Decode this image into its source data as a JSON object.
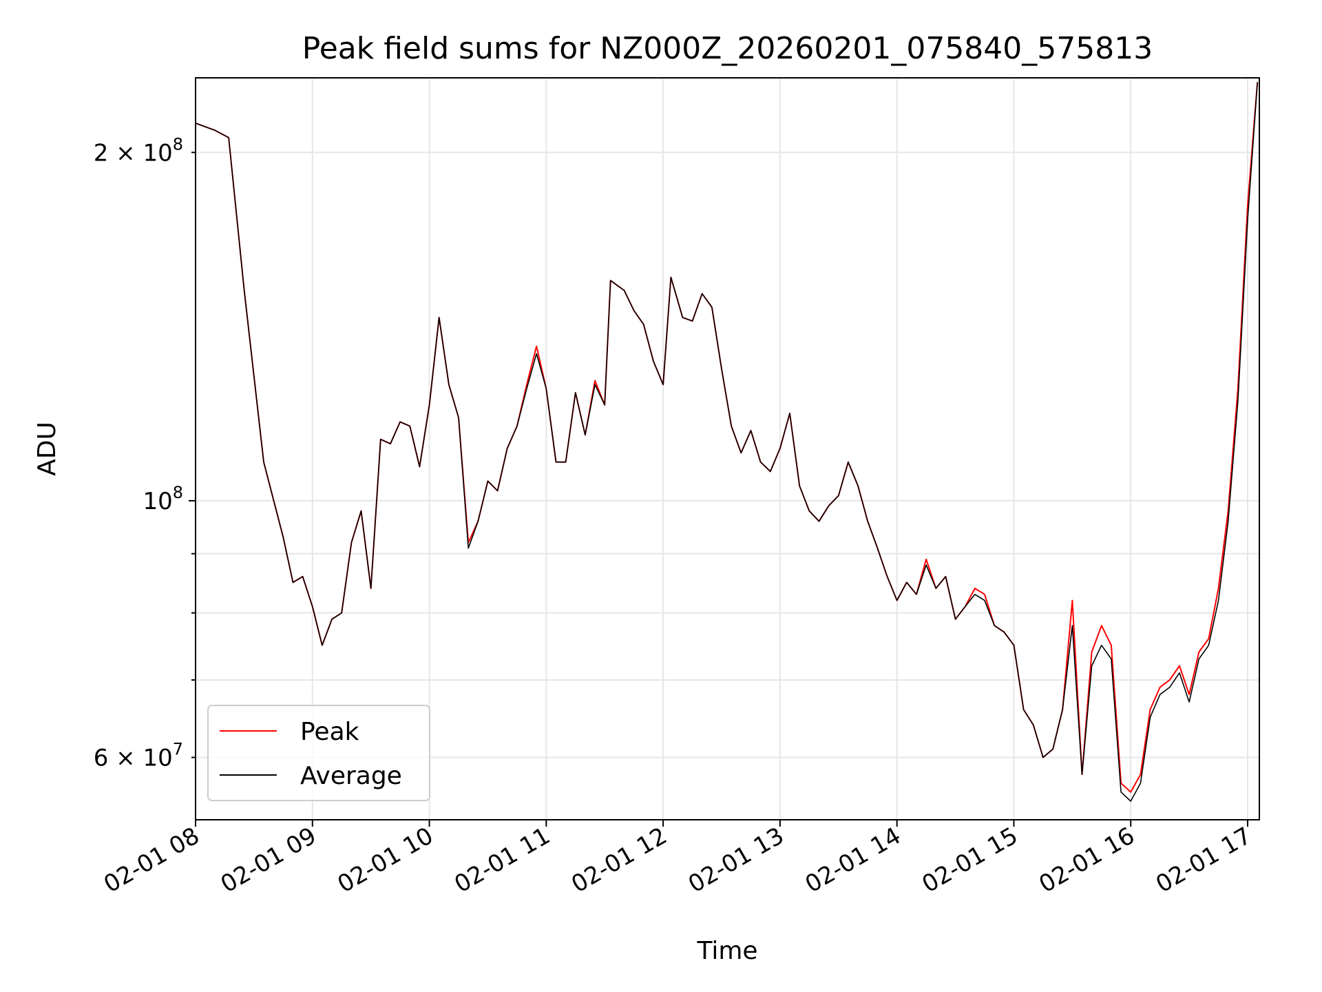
{
  "chart_data": {
    "type": "line",
    "title": "Peak field sums for NZ000Z_20260201_075840_575813",
    "xlabel": "Time",
    "ylabel": "ADU",
    "y_scale": "log",
    "ylim": [
      53000000,
      232000000
    ],
    "xlim": [
      "2026-02-01 08:00",
      "2026-02-01 17:00"
    ],
    "x_ticks": [
      "02-01 08",
      "02-01 09",
      "02-01 10",
      "02-01 11",
      "02-01 12",
      "02-01 13",
      "02-01 14",
      "02-01 15",
      "02-01 16",
      "02-01 17"
    ],
    "y_tick_labels": [
      {
        "value": 200000000,
        "mantissa": "2",
        "exp": "8"
      },
      {
        "value": 100000000,
        "mantissa": "",
        "exp": "8"
      },
      {
        "value": 60000000,
        "mantissa": "6",
        "exp": "7"
      }
    ],
    "grid": true,
    "legend_position": "lower-left",
    "x": [
      "08:00",
      "08:10",
      "08:17",
      "08:25",
      "08:35",
      "08:45",
      "08:50",
      "08:55",
      "09:00",
      "09:05",
      "09:10",
      "09:15",
      "09:20",
      "09:25",
      "09:30",
      "09:35",
      "09:40",
      "09:45",
      "09:50",
      "09:55",
      "10:00",
      "10:05",
      "10:10",
      "10:15",
      "10:20",
      "10:25",
      "10:30",
      "10:35",
      "10:40",
      "10:45",
      "10:50",
      "10:55",
      "11:00",
      "11:05",
      "11:10",
      "11:15",
      "11:20",
      "11:25",
      "11:30",
      "11:33",
      "11:40",
      "11:45",
      "11:50",
      "11:55",
      "12:00",
      "12:04",
      "12:10",
      "12:15",
      "12:20",
      "12:25",
      "12:30",
      "12:35",
      "12:40",
      "12:45",
      "12:50",
      "12:55",
      "13:00",
      "13:05",
      "13:10",
      "13:15",
      "13:20",
      "13:25",
      "13:30",
      "13:35",
      "13:40",
      "13:45",
      "13:50",
      "13:55",
      "14:00",
      "14:05",
      "14:10",
      "14:15",
      "14:20",
      "14:25",
      "14:30",
      "14:35",
      "14:40",
      "14:45",
      "14:50",
      "14:55",
      "15:00",
      "15:05",
      "15:10",
      "15:15",
      "15:20",
      "15:25",
      "15:30",
      "15:35",
      "15:40",
      "15:45",
      "15:50",
      "15:55",
      "16:00",
      "16:05",
      "16:10",
      "16:15",
      "16:20",
      "16:25",
      "16:30",
      "16:35",
      "16:40",
      "16:45",
      "16:50",
      "16:55",
      "17:00",
      "17:05"
    ],
    "series": [
      {
        "name": "Peak",
        "color": "#ff0000",
        "values": [
          212000000,
          209000000,
          206000000,
          152000000,
          108000000,
          93000000,
          85000000,
          86000000,
          81000000,
          75000000,
          79000000,
          80000000,
          92000000,
          98000000,
          84000000,
          113000000,
          112000000,
          117000000,
          116000000,
          107000000,
          121000000,
          144000000,
          126000000,
          118000000,
          92000000,
          96000000,
          104000000,
          102000000,
          111000000,
          116000000,
          126000000,
          136000000,
          125000000,
          108000000,
          108000000,
          124000000,
          114000000,
          127000000,
          121000000,
          155000000,
          152000000,
          146000000,
          142000000,
          132000000,
          126000000,
          156000000,
          144000000,
          143000000,
          151000000,
          147000000,
          130000000,
          116000000,
          110000000,
          115000000,
          108000000,
          106000000,
          111000000,
          119000000,
          103000000,
          98000000,
          96000000,
          99000000,
          101000000,
          108000000,
          103000000,
          96000000,
          91000000,
          86000000,
          82000000,
          85000000,
          83000000,
          89000000,
          84000000,
          86000000,
          79000000,
          81000000,
          84000000,
          83000000,
          78000000,
          77000000,
          75000000,
          66000000,
          64000000,
          60000000,
          61000000,
          66000000,
          82000000,
          58000000,
          74000000,
          78000000,
          75000000,
          57000000,
          56000000,
          58000000,
          66000000,
          69000000,
          70000000,
          72000000,
          68000000,
          74000000,
          76000000,
          84000000,
          98000000,
          125000000,
          180000000,
          230000000
        ]
      },
      {
        "name": "Average",
        "color": "#000000",
        "values": [
          212000000,
          209000000,
          206000000,
          152000000,
          108000000,
          93000000,
          85000000,
          86000000,
          81000000,
          75000000,
          79000000,
          80000000,
          92000000,
          98000000,
          84000000,
          113000000,
          112000000,
          117000000,
          116000000,
          107000000,
          121000000,
          144000000,
          126000000,
          118000000,
          91000000,
          96000000,
          104000000,
          102000000,
          111000000,
          116000000,
          125000000,
          134000000,
          125000000,
          108000000,
          108000000,
          124000000,
          114000000,
          126000000,
          121000000,
          155000000,
          152000000,
          146000000,
          142000000,
          132000000,
          126000000,
          156000000,
          144000000,
          143000000,
          151000000,
          147000000,
          130000000,
          116000000,
          110000000,
          115000000,
          108000000,
          106000000,
          111000000,
          119000000,
          103000000,
          98000000,
          96000000,
          99000000,
          101000000,
          108000000,
          103000000,
          96000000,
          91000000,
          86000000,
          82000000,
          85000000,
          83000000,
          88000000,
          84000000,
          86000000,
          79000000,
          81000000,
          83000000,
          82000000,
          78000000,
          77000000,
          75000000,
          66000000,
          64000000,
          60000000,
          61000000,
          66000000,
          78000000,
          58000000,
          72000000,
          75000000,
          73000000,
          56000000,
          55000000,
          57000000,
          65000000,
          68000000,
          69000000,
          71000000,
          67000000,
          73000000,
          75000000,
          82000000,
          96000000,
          122000000,
          175000000,
          230000000
        ]
      }
    ]
  }
}
